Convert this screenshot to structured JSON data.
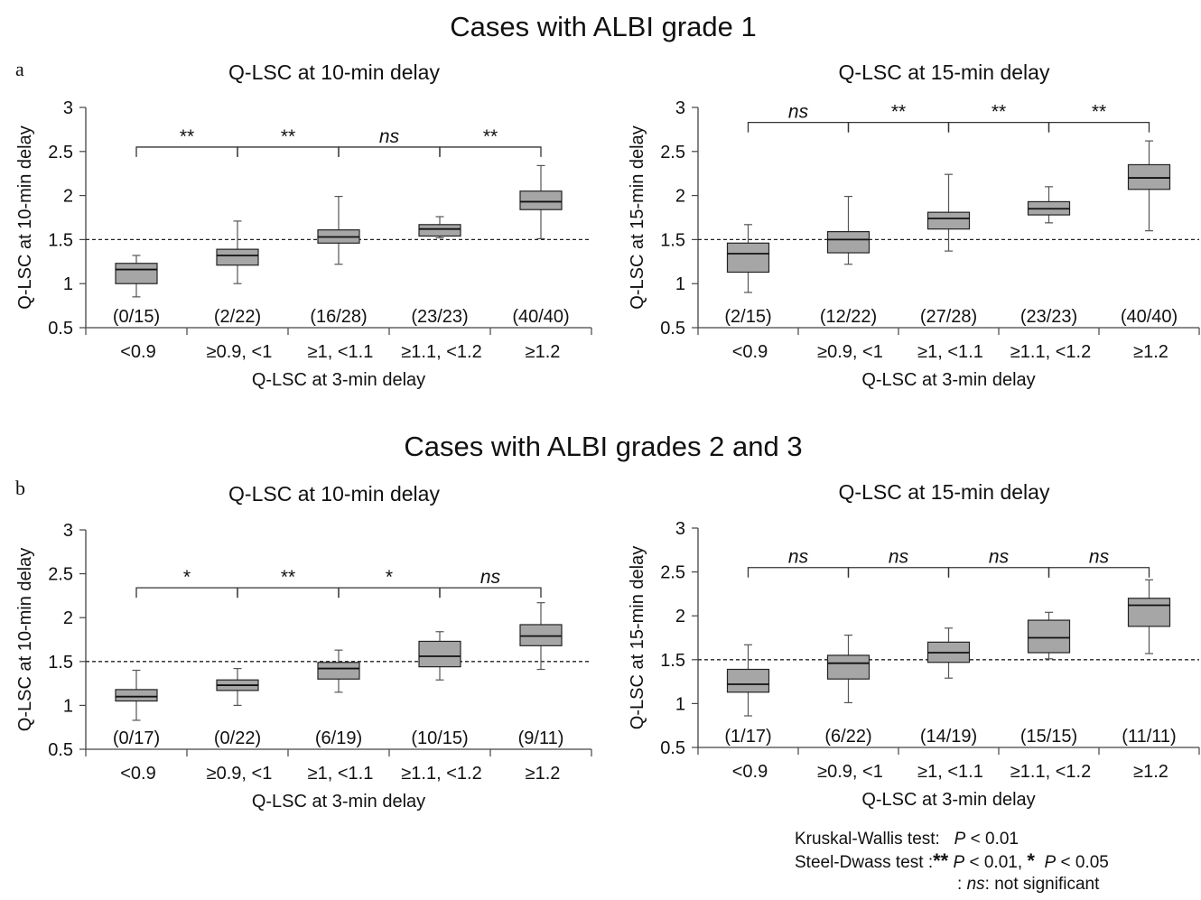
{
  "figure": {
    "section_a_title": "Cases with ALBI grade 1",
    "section_b_title": "Cases with ALBI grades 2 and 3",
    "panel_a": "a",
    "panel_b": "b",
    "box_color": "#a6a6a6",
    "reference_line": 1.5
  },
  "legend": {
    "kw_label": "Kruskal-Wallis test:",
    "kw_p": "P",
    "kw_rest": " < 0.01",
    "sd_label": "Steel-Dwass test :",
    "sd_star2": "**",
    "sd_p1": "P",
    "sd_rest1": " < 0.01,",
    "sd_star1": "*",
    "sd_p2": "P",
    "sd_rest2": " < 0.05",
    "ns_prefix": ": ",
    "ns_abbr": "ns",
    "ns_rest": ": not significant"
  },
  "chart_data": [
    {
      "type": "box",
      "title": "Q-LSC at 10-min delay",
      "xlabel": "Q-LSC at 3-min delay",
      "ylabel": "Q-LSC at 10-min delay",
      "ylim": [
        0.5,
        3
      ],
      "yticks": [
        "0.5",
        "1",
        "1.5",
        "2",
        "2.5",
        "3"
      ],
      "categories": [
        "<0.9",
        "≥0.9, <1",
        "≥1, <1.1",
        "≥1.1, <1.2",
        "≥1.2"
      ],
      "counts": [
        "(0/15)",
        "(2/22)",
        "(16/28)",
        "(23/23)",
        "(40/40)"
      ],
      "boxes": [
        {
          "min": 0.85,
          "q1": 1.0,
          "median": 1.16,
          "q3": 1.23,
          "max": 1.32
        },
        {
          "min": 1.0,
          "q1": 1.21,
          "median": 1.32,
          "q3": 1.39,
          "max": 1.71
        },
        {
          "min": 1.22,
          "q1": 1.46,
          "median": 1.53,
          "q3": 1.61,
          "max": 1.99
        },
        {
          "min": 1.52,
          "q1": 1.54,
          "median": 1.62,
          "q3": 1.67,
          "max": 1.76
        },
        {
          "min": 1.51,
          "q1": 1.84,
          "median": 1.93,
          "q3": 2.05,
          "max": 2.34
        }
      ],
      "significance": [
        {
          "level": 2.55,
          "label": "**",
          "italic": false
        },
        {
          "level": 2.55,
          "label": "**",
          "italic": false
        },
        {
          "level": 2.55,
          "label": "ns",
          "italic": true
        },
        {
          "level": 2.55,
          "label": "**",
          "italic": false
        }
      ]
    },
    {
      "type": "box",
      "title": "Q-LSC at 15-min delay",
      "xlabel": "Q-LSC at 3-min delay",
      "ylabel": "Q-LSC at 15-min delay",
      "ylim": [
        0.5,
        3
      ],
      "yticks": [
        "0.5",
        "1",
        "1.5",
        "2",
        "2.5",
        "3"
      ],
      "categories": [
        "<0.9",
        "≥0.9, <1",
        "≥1, <1.1",
        "≥1.1, <1.2",
        "≥1.2"
      ],
      "counts": [
        "(2/15)",
        "(12/22)",
        "(27/28)",
        "(23/23)",
        "(40/40)"
      ],
      "boxes": [
        {
          "min": 0.9,
          "q1": 1.13,
          "median": 1.34,
          "q3": 1.46,
          "max": 1.67
        },
        {
          "min": 1.22,
          "q1": 1.35,
          "median": 1.5,
          "q3": 1.59,
          "max": 1.99
        },
        {
          "min": 1.37,
          "q1": 1.62,
          "median": 1.74,
          "q3": 1.81,
          "max": 2.24
        },
        {
          "min": 1.69,
          "q1": 1.78,
          "median": 1.85,
          "q3": 1.93,
          "max": 2.1
        },
        {
          "min": 1.6,
          "q1": 2.07,
          "median": 2.2,
          "q3": 2.35,
          "max": 2.62
        }
      ],
      "significance": [
        {
          "level": 2.83,
          "label": "ns",
          "italic": true
        },
        {
          "level": 2.83,
          "label": "**",
          "italic": false
        },
        {
          "level": 2.83,
          "label": "**",
          "italic": false
        },
        {
          "level": 2.83,
          "label": "**",
          "italic": false
        }
      ]
    },
    {
      "type": "box",
      "title": "Q-LSC at 10-min delay",
      "xlabel": "Q-LSC at 3-min delay",
      "ylabel": "Q-LSC at 10-min delay",
      "ylim": [
        0.5,
        3
      ],
      "yticks": [
        "0.5",
        "1",
        "1.5",
        "2",
        "2.5",
        "3"
      ],
      "categories": [
        "<0.9",
        "≥0.9, <1",
        "≥1, <1.1",
        "≥1.1, <1.2",
        "≥1.2"
      ],
      "counts": [
        "(0/17)",
        "(0/22)",
        "(6/19)",
        "(10/15)",
        "(9/11)"
      ],
      "boxes": [
        {
          "min": 0.83,
          "q1": 1.05,
          "median": 1.1,
          "q3": 1.18,
          "max": 1.4
        },
        {
          "min": 1.0,
          "q1": 1.17,
          "median": 1.23,
          "q3": 1.29,
          "max": 1.42
        },
        {
          "min": 1.15,
          "q1": 1.3,
          "median": 1.42,
          "q3": 1.49,
          "max": 1.63
        },
        {
          "min": 1.29,
          "q1": 1.44,
          "median": 1.56,
          "q3": 1.73,
          "max": 1.84
        },
        {
          "min": 1.41,
          "q1": 1.68,
          "median": 1.79,
          "q3": 1.92,
          "max": 2.17
        }
      ],
      "significance": [
        {
          "level": 2.34,
          "label": "*",
          "italic": false
        },
        {
          "level": 2.34,
          "label": "**",
          "italic": false
        },
        {
          "level": 2.34,
          "label": "*",
          "italic": false
        },
        {
          "level": 2.34,
          "label": "ns",
          "italic": true
        }
      ]
    },
    {
      "type": "box",
      "title": "Q-LSC at 15-min delay",
      "xlabel": "Q-LSC at 3-min delay",
      "ylabel": "Q-LSC at 15-min delay",
      "ylim": [
        0.5,
        3
      ],
      "yticks": [
        "0.5",
        "1",
        "1.5",
        "2",
        "2.5",
        "3"
      ],
      "categories": [
        "<0.9",
        "≥0.9, <1",
        "≥1, <1.1",
        "≥1.1, <1.2",
        "≥1.2"
      ],
      "counts": [
        "(1/17)",
        "(6/22)",
        "(14/19)",
        "(15/15)",
        "(11/11)"
      ],
      "boxes": [
        {
          "min": 0.86,
          "q1": 1.13,
          "median": 1.22,
          "q3": 1.39,
          "max": 1.67
        },
        {
          "min": 1.01,
          "q1": 1.28,
          "median": 1.46,
          "q3": 1.55,
          "max": 1.78
        },
        {
          "min": 1.29,
          "q1": 1.47,
          "median": 1.58,
          "q3": 1.7,
          "max": 1.86
        },
        {
          "min": 1.51,
          "q1": 1.58,
          "median": 1.75,
          "q3": 1.95,
          "max": 2.04
        },
        {
          "min": 1.57,
          "q1": 1.88,
          "median": 2.12,
          "q3": 2.2,
          "max": 2.41
        }
      ],
      "significance": [
        {
          "level": 2.55,
          "label": "ns",
          "italic": true
        },
        {
          "level": 2.55,
          "label": "ns",
          "italic": true
        },
        {
          "level": 2.55,
          "label": "ns",
          "italic": true
        },
        {
          "level": 2.55,
          "label": "ns",
          "italic": true
        }
      ]
    }
  ]
}
